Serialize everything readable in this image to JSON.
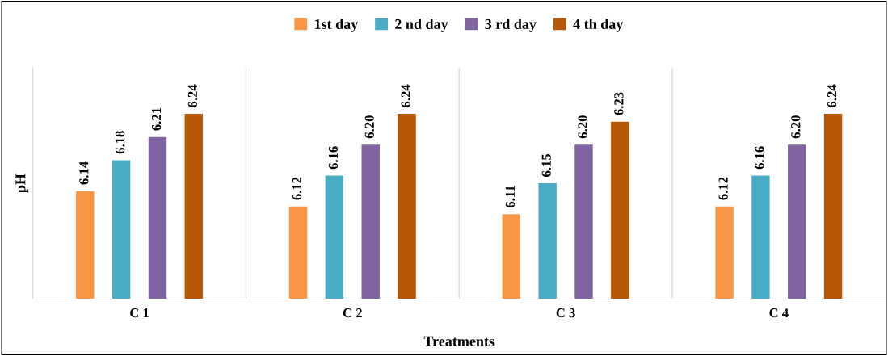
{
  "chart_data": {
    "type": "bar",
    "xlabel": "Treatments",
    "ylabel": "pH",
    "categories": [
      "C 1",
      "C 2",
      "C 3",
      "C 4"
    ],
    "series": [
      {
        "name": "1st day",
        "color": "#f79646",
        "values": [
          6.14,
          6.12,
          6.11,
          6.12
        ],
        "value_labels": [
          "6.14",
          "6.12",
          "6.11",
          "6.12"
        ]
      },
      {
        "name": "2 nd day",
        "color": "#4bacc6",
        "values": [
          6.18,
          6.16,
          6.15,
          6.16
        ],
        "value_labels": [
          "6.18",
          "6.16",
          "6.15",
          "6.16"
        ]
      },
      {
        "name": "3 rd day",
        "color": "#8064a2",
        "values": [
          6.21,
          6.2,
          6.2,
          6.2
        ],
        "value_labels": [
          "6.21",
          "6.20",
          "6.20",
          "6.20"
        ]
      },
      {
        "name": "4 th day",
        "color": "#b65708",
        "values": [
          6.24,
          6.24,
          6.23,
          6.24
        ],
        "value_labels": [
          "6.24",
          "6.24",
          "6.23",
          "6.24"
        ]
      }
    ],
    "ylim": [
      6.0,
      6.3
    ],
    "tick_labels": "x",
    "grid": "x",
    "legend": "top"
  }
}
